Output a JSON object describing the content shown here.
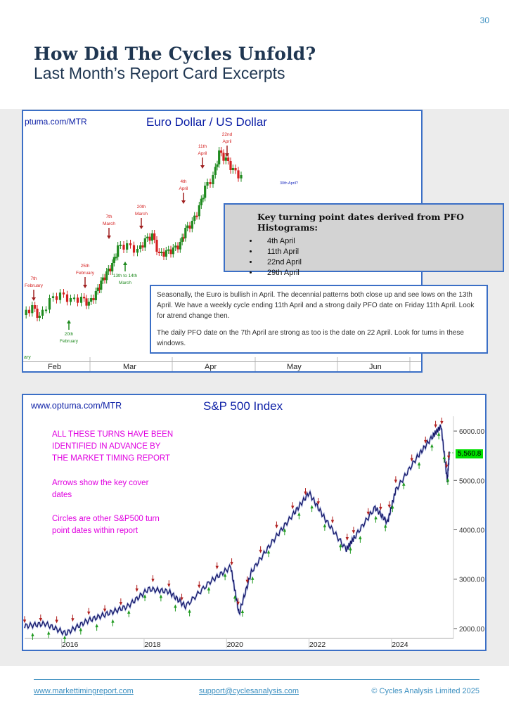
{
  "page_number": "30",
  "title": "How Did The Cycles Unfold?",
  "subtitle": "Last Month’s Report Card Excerpts",
  "euro_chart": {
    "source_label": "ptuma.com/MTR",
    "title": "Euro Dollar / US Dollar",
    "x_labels": [
      "Feb",
      "Mar",
      "Apr",
      "May",
      "Jun"
    ],
    "annotations_red": [
      "7th February",
      "25th February",
      "7th March",
      "20th March",
      "4th April",
      "11th April",
      "22nd April"
    ],
    "annotations_green": [
      "20th February",
      "13th to 14th March"
    ],
    "annotation_blue": "30th April?",
    "left_edge_label": "ary",
    "callout_heading": "Key turning point dates derived from PFO Histograms:",
    "callout_dates": [
      "4th April",
      "11th April",
      "22nd April",
      "29th April"
    ],
    "note_para1": "Seasonally, the Euro is bullish in April. The decennial patterns both close up and see lows on the 13th April. We have a weekly cycle ending 11th April and a strong daily PFO date on Friday 11th April. Look for atrend change then.",
    "note_para2": "The daily PFO date on the 7th April are strong as too is the date on 22 April. Look for turns in these windows."
  },
  "spx_chart": {
    "source_label": "www.optuma.com/MTR",
    "title": "S&P 500 Index",
    "magenta_text_1": [
      "ALL THESE TURNS HAVE BEEN",
      "IDENTIFIED IN ADVANCE BY",
      "THE MARKET TIMING REPORT"
    ],
    "magenta_text_2": [
      "Arrows show the key cover",
      "dates"
    ],
    "magenta_text_3": [
      "Circles are other S&P500 turn",
      "point dates within report"
    ],
    "y_ticks": [
      "6000.00",
      "5000.00",
      "4000.00",
      "3000.00",
      "2000.00"
    ],
    "x_labels": [
      "2016",
      "2018",
      "2020",
      "2022",
      "2024"
    ],
    "last_price": "5,560.8"
  },
  "chart_data": [
    {
      "type": "line",
      "title": "S&P 500 Index",
      "x": [
        2015.0,
        2015.5,
        2016.0,
        2016.5,
        2017.0,
        2017.5,
        2018.0,
        2018.5,
        2018.9,
        2019.5,
        2020.0,
        2020.2,
        2020.5,
        2021.0,
        2021.5,
        2021.9,
        2022.3,
        2022.8,
        2023.0,
        2023.5,
        2023.8,
        2024.0,
        2024.5,
        2024.9,
        2025.1,
        2025.25,
        2025.3
      ],
      "series": [
        {
          "values": [
            2050,
            2100,
            1900,
            2150,
            2300,
            2450,
            2800,
            2750,
            2450,
            2950,
            3250,
            2300,
            3150,
            3750,
            4300,
            4750,
            4200,
            3600,
            3850,
            4450,
            4150,
            4800,
            5450,
            5900,
            6100,
            5000,
            5560
          ]
        }
      ],
      "ylim": [
        1800,
        6300
      ],
      "xlim": [
        2015,
        2025.4
      ]
    }
  ],
  "footer": {
    "website": "www.markettimingreport.com",
    "email": "support@cyclesanalysis.com",
    "copyright": "© Cycles Analysis Limited 2025"
  },
  "colors": {
    "accent": "#3b8fc0",
    "title": "#1f3651",
    "chart_border": "#3b6fc6",
    "up_candle": "#1f8a1f",
    "down_candle": "#d42020",
    "magenta": "#e000e0"
  }
}
